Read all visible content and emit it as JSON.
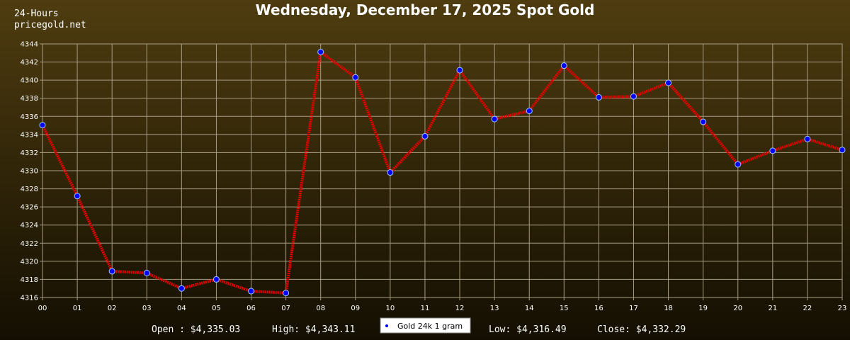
{
  "header": {
    "period": "24-Hours",
    "site": "pricegold.net"
  },
  "stats": {
    "open": "Open : $4,335.03",
    "high": "High: $4,343.11",
    "low": "Low: $4,316.49",
    "close": "Close: $4,332.29"
  },
  "colors": {
    "line": "#e60000",
    "point": "#0000ff",
    "grid": "#a89c84",
    "text": "#ffffff"
  },
  "chart_data": {
    "type": "line",
    "title": "Wednesday, December 17, 2025 Spot Gold",
    "xlabel": "",
    "ylabel": "",
    "categories": [
      "00",
      "01",
      "02",
      "03",
      "04",
      "05",
      "06",
      "07",
      "08",
      "09",
      "10",
      "11",
      "12",
      "13",
      "14",
      "15",
      "16",
      "17",
      "18",
      "19",
      "20",
      "21",
      "22",
      "23"
    ],
    "yticks": [
      4316,
      4318,
      4320,
      4322,
      4324,
      4326,
      4328,
      4330,
      4332,
      4334,
      4336,
      4338,
      4340,
      4342,
      4344
    ],
    "ylim": [
      4316,
      4344
    ],
    "grid": true,
    "legend_position": "bottom-center",
    "series": [
      {
        "name": "Gold 24k 1 gram",
        "values": [
          4335.03,
          4327.2,
          4318.9,
          4318.7,
          4317.0,
          4318.0,
          4316.7,
          4316.49,
          4343.11,
          4340.3,
          4329.8,
          4333.8,
          4341.1,
          4335.7,
          4336.6,
          4341.6,
          4338.1,
          4338.2,
          4339.7,
          4335.4,
          4330.7,
          4332.2,
          4333.5,
          4332.29
        ]
      }
    ]
  }
}
